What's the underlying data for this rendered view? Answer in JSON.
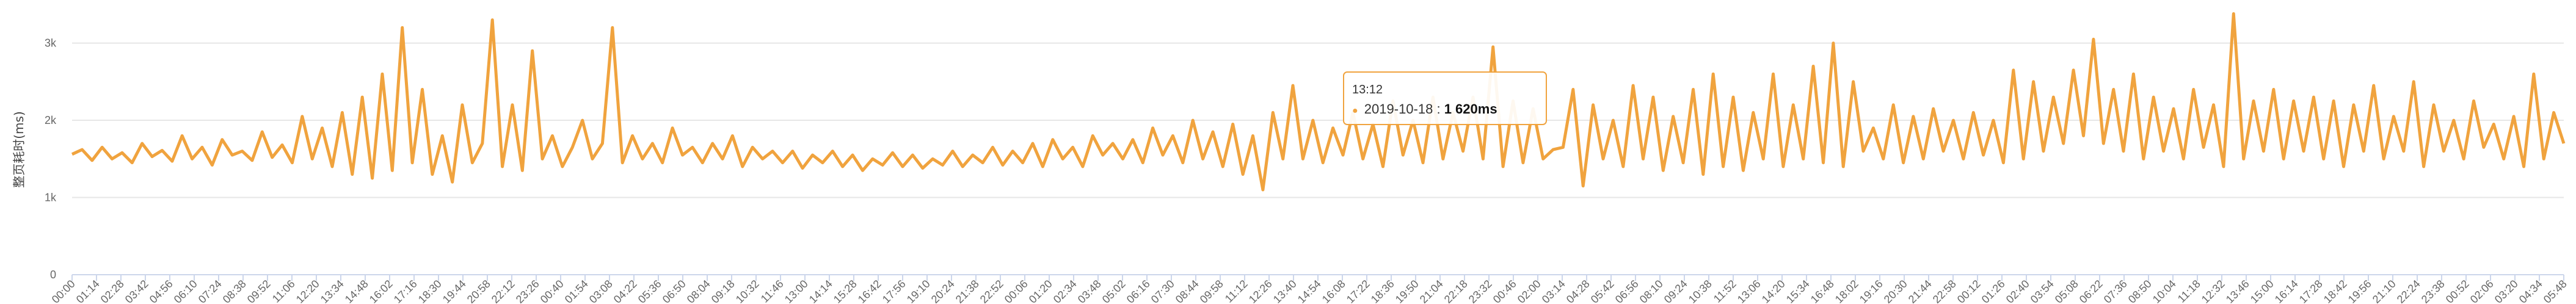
{
  "chart_data": {
    "type": "line",
    "ylabel": "整页耗时(ms)",
    "ylim": [
      0,
      3400
    ],
    "y_ticks": [
      "0",
      "1k",
      "2k",
      "3k"
    ],
    "y_tick_values": [
      0,
      1000,
      2000,
      3000
    ],
    "grid": true,
    "legend": "none",
    "series_color": "#f0a33e",
    "x_tick_labels": [
      "00:00",
      "01:14",
      "02:28",
      "03:42",
      "04:56",
      "06:10",
      "07:24",
      "08:38",
      "09:52",
      "11:06",
      "12:20",
      "13:34",
      "14:48",
      "16:02",
      "17:16",
      "18:30",
      "19:44",
      "20:58",
      "22:12",
      "23:26",
      "00:40",
      "01:54",
      "03:08",
      "04:22",
      "05:36",
      "06:50",
      "08:04",
      "09:18",
      "10:32",
      "11:46",
      "13:00",
      "14:14",
      "15:28",
      "16:42",
      "17:56",
      "19:10",
      "20:24",
      "21:38",
      "22:52",
      "00:06",
      "01:20",
      "02:34",
      "03:48",
      "05:02",
      "06:16",
      "07:30",
      "08:44",
      "09:58",
      "11:12",
      "12:26",
      "13:40",
      "14:54",
      "16:08",
      "17:22",
      "18:36",
      "19:50",
      "21:04",
      "22:18",
      "23:32",
      "00:46",
      "02:00",
      "03:14",
      "04:28",
      "05:42",
      "06:56",
      "08:10",
      "09:24",
      "10:38",
      "11:52",
      "13:06",
      "14:20",
      "15:34",
      "16:48",
      "18:02",
      "19:16",
      "20:30",
      "21:44",
      "22:58",
      "00:12",
      "01:26",
      "02:40",
      "03:54",
      "05:08",
      "06:22",
      "07:36",
      "08:50",
      "10:04",
      "11:18",
      "12:32",
      "13:46",
      "15:00",
      "16:14",
      "17:28",
      "18:42",
      "19:56",
      "21:10",
      "22:24",
      "23:38",
      "00:52",
      "02:06",
      "03:20",
      "04:34",
      "05:48"
    ],
    "approx_points": [
      [
        0,
        1560
      ],
      [
        1,
        1620
      ],
      [
        2,
        1480
      ],
      [
        3,
        1650
      ],
      [
        4,
        1500
      ],
      [
        5,
        1580
      ],
      [
        6,
        1450
      ],
      [
        7,
        1700
      ],
      [
        8,
        1530
      ],
      [
        9,
        1610
      ],
      [
        10,
        1470
      ],
      [
        11,
        1800
      ],
      [
        12,
        1500
      ],
      [
        13,
        1650
      ],
      [
        14,
        1420
      ],
      [
        15,
        1750
      ],
      [
        16,
        1550
      ],
      [
        17,
        1600
      ],
      [
        18,
        1480
      ],
      [
        19,
        1850
      ],
      [
        20,
        1520
      ],
      [
        21,
        1680
      ],
      [
        22,
        1450
      ],
      [
        23,
        2050
      ],
      [
        24,
        1500
      ],
      [
        25,
        1900
      ],
      [
        26,
        1400
      ],
      [
        27,
        2100
      ],
      [
        28,
        1300
      ],
      [
        29,
        2300
      ],
      [
        30,
        1250
      ],
      [
        31,
        2600
      ],
      [
        32,
        1350
      ],
      [
        33,
        3200
      ],
      [
        34,
        1450
      ],
      [
        35,
        2400
      ],
      [
        36,
        1300
      ],
      [
        37,
        1800
      ],
      [
        38,
        1200
      ],
      [
        39,
        2200
      ],
      [
        40,
        1450
      ],
      [
        41,
        1700
      ],
      [
        42,
        3300
      ],
      [
        43,
        1400
      ],
      [
        44,
        2200
      ],
      [
        45,
        1350
      ],
      [
        46,
        2900
      ],
      [
        47,
        1500
      ],
      [
        48,
        1800
      ],
      [
        49,
        1400
      ],
      [
        50,
        1650
      ],
      [
        51,
        2000
      ],
      [
        52,
        1500
      ],
      [
        53,
        1700
      ],
      [
        54,
        3200
      ],
      [
        55,
        1450
      ],
      [
        56,
        1800
      ],
      [
        57,
        1500
      ],
      [
        58,
        1700
      ],
      [
        59,
        1450
      ],
      [
        60,
        1900
      ],
      [
        61,
        1550
      ],
      [
        62,
        1650
      ],
      [
        63,
        1450
      ],
      [
        64,
        1700
      ],
      [
        65,
        1500
      ],
      [
        66,
        1800
      ],
      [
        67,
        1400
      ],
      [
        68,
        1650
      ],
      [
        69,
        1500
      ],
      [
        70,
        1600
      ],
      [
        71,
        1450
      ],
      [
        72,
        1600
      ],
      [
        73,
        1380
      ],
      [
        74,
        1550
      ],
      [
        75,
        1450
      ],
      [
        76,
        1600
      ],
      [
        77,
        1400
      ],
      [
        78,
        1550
      ],
      [
        79,
        1350
      ],
      [
        80,
        1500
      ],
      [
        81,
        1420
      ],
      [
        82,
        1580
      ],
      [
        83,
        1400
      ],
      [
        84,
        1550
      ],
      [
        85,
        1380
      ],
      [
        86,
        1500
      ],
      [
        87,
        1420
      ],
      [
        88,
        1600
      ],
      [
        89,
        1400
      ],
      [
        90,
        1550
      ],
      [
        91,
        1450
      ],
      [
        92,
        1650
      ],
      [
        93,
        1420
      ],
      [
        94,
        1600
      ],
      [
        95,
        1450
      ],
      [
        96,
        1700
      ],
      [
        97,
        1400
      ],
      [
        98,
        1750
      ],
      [
        99,
        1500
      ],
      [
        100,
        1650
      ],
      [
        101,
        1400
      ],
      [
        102,
        1800
      ],
      [
        103,
        1550
      ],
      [
        104,
        1700
      ],
      [
        105,
        1500
      ],
      [
        106,
        1750
      ],
      [
        107,
        1450
      ],
      [
        108,
        1900
      ],
      [
        109,
        1550
      ],
      [
        110,
        1800
      ],
      [
        111,
        1450
      ],
      [
        112,
        2000
      ],
      [
        113,
        1500
      ],
      [
        114,
        1850
      ],
      [
        115,
        1400
      ],
      [
        116,
        1950
      ],
      [
        117,
        1300
      ],
      [
        118,
        1800
      ],
      [
        119,
        1100
      ],
      [
        120,
        2100
      ],
      [
        121,
        1500
      ],
      [
        122,
        2450
      ],
      [
        123,
        1500
      ],
      [
        124,
        2000
      ],
      [
        125,
        1450
      ],
      [
        126,
        1900
      ],
      [
        127,
        1550
      ],
      [
        128,
        2100
      ],
      [
        129,
        1500
      ],
      [
        130,
        1950
      ],
      [
        131,
        1400
      ],
      [
        132,
        2250
      ],
      [
        133,
        1550
      ],
      [
        134,
        2000
      ],
      [
        135,
        1450
      ],
      [
        136,
        2300
      ],
      [
        137,
        1500
      ],
      [
        138,
        2100
      ],
      [
        139,
        1600
      ],
      [
        140,
        2300
      ],
      [
        141,
        1500
      ],
      [
        142,
        2950
      ],
      [
        143,
        1400
      ],
      [
        144,
        2250
      ],
      [
        145,
        1450
      ],
      [
        146,
        2150
      ],
      [
        147,
        1500
      ],
      [
        148,
        1620
      ],
      [
        149,
        1650
      ],
      [
        150,
        2400
      ],
      [
        151,
        1150
      ],
      [
        152,
        2200
      ],
      [
        153,
        1500
      ],
      [
        154,
        2000
      ],
      [
        155,
        1400
      ],
      [
        156,
        2450
      ],
      [
        157,
        1500
      ],
      [
        158,
        2300
      ],
      [
        159,
        1350
      ],
      [
        160,
        2050
      ],
      [
        161,
        1450
      ],
      [
        162,
        2400
      ],
      [
        163,
        1300
      ],
      [
        164,
        2600
      ],
      [
        165,
        1400
      ],
      [
        166,
        2300
      ],
      [
        167,
        1350
      ],
      [
        168,
        2100
      ],
      [
        169,
        1500
      ],
      [
        170,
        2600
      ],
      [
        171,
        1400
      ],
      [
        172,
        2200
      ],
      [
        173,
        1500
      ],
      [
        174,
        2700
      ],
      [
        175,
        1450
      ],
      [
        176,
        3000
      ],
      [
        177,
        1400
      ],
      [
        178,
        2500
      ],
      [
        179,
        1600
      ],
      [
        180,
        1900
      ],
      [
        181,
        1500
      ],
      [
        182,
        2200
      ],
      [
        183,
        1450
      ],
      [
        184,
        2050
      ],
      [
        185,
        1500
      ],
      [
        186,
        2150
      ],
      [
        187,
        1600
      ],
      [
        188,
        2000
      ],
      [
        189,
        1500
      ],
      [
        190,
        2100
      ],
      [
        191,
        1550
      ],
      [
        192,
        2000
      ],
      [
        193,
        1450
      ],
      [
        194,
        2650
      ],
      [
        195,
        1500
      ],
      [
        196,
        2500
      ],
      [
        197,
        1600
      ],
      [
        198,
        2300
      ],
      [
        199,
        1700
      ],
      [
        200,
        2650
      ],
      [
        201,
        1800
      ],
      [
        202,
        3050
      ],
      [
        203,
        1700
      ],
      [
        204,
        2400
      ],
      [
        205,
        1600
      ],
      [
        206,
        2600
      ],
      [
        207,
        1500
      ],
      [
        208,
        2300
      ],
      [
        209,
        1600
      ],
      [
        210,
        2150
      ],
      [
        211,
        1500
      ],
      [
        212,
        2400
      ],
      [
        213,
        1650
      ],
      [
        214,
        2200
      ],
      [
        215,
        1400
      ],
      [
        216,
        3380
      ],
      [
        217,
        1500
      ],
      [
        218,
        2250
      ],
      [
        219,
        1600
      ],
      [
        220,
        2400
      ],
      [
        221,
        1500
      ],
      [
        222,
        2250
      ],
      [
        223,
        1600
      ],
      [
        224,
        2300
      ],
      [
        225,
        1500
      ],
      [
        226,
        2250
      ],
      [
        227,
        1400
      ],
      [
        228,
        2200
      ],
      [
        229,
        1600
      ],
      [
        230,
        2450
      ],
      [
        231,
        1500
      ],
      [
        232,
        2050
      ],
      [
        233,
        1600
      ],
      [
        234,
        2500
      ],
      [
        235,
        1400
      ],
      [
        236,
        2200
      ],
      [
        237,
        1600
      ],
      [
        238,
        2000
      ],
      [
        239,
        1500
      ],
      [
        240,
        2250
      ],
      [
        241,
        1650
      ],
      [
        242,
        1950
      ],
      [
        243,
        1500
      ],
      [
        244,
        2050
      ],
      [
        245,
        1400
      ],
      [
        246,
        2600
      ],
      [
        247,
        1500
      ],
      [
        248,
        2100
      ],
      [
        249,
        1700
      ]
    ]
  },
  "tooltip": {
    "title": "13:12",
    "bullet": "●",
    "series": "2019-10-18",
    "separator": ": ",
    "value": "1 620ms"
  }
}
